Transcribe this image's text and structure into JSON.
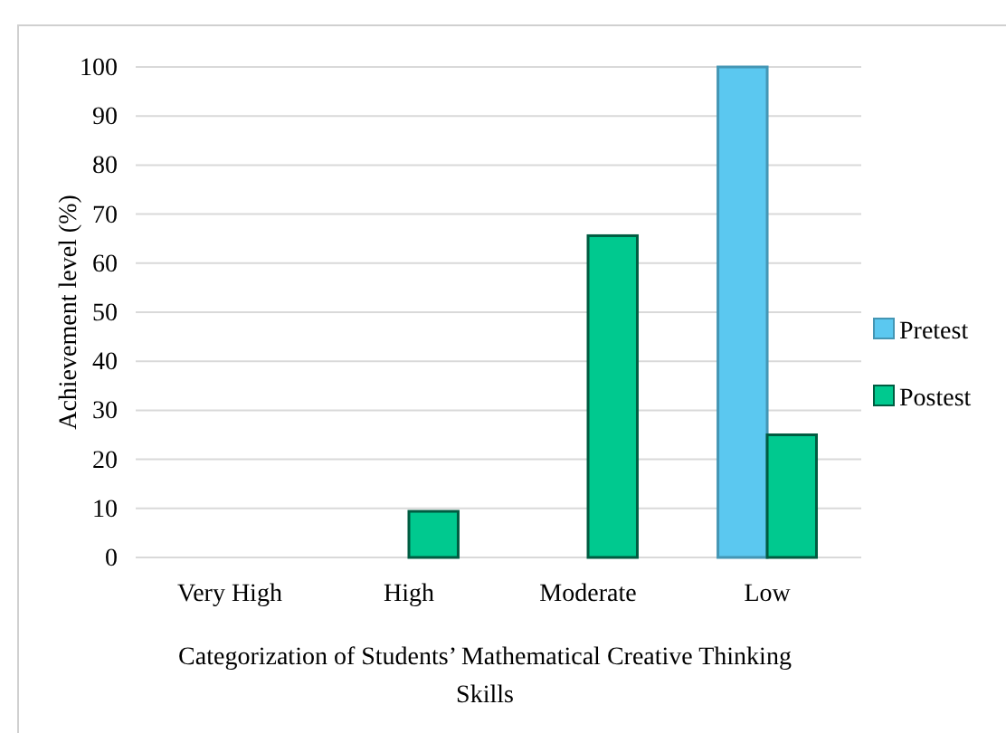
{
  "chart_data": {
    "type": "bar",
    "xlabel": "Categorization of Students’ Mathematical Creative Thinking Skills",
    "ylabel": "Achievement level (%)",
    "categories": [
      "Very High",
      "High",
      "Moderate",
      "Low"
    ],
    "series": [
      {
        "name": "Pretest",
        "color": "#5bc8f0",
        "values": [
          0,
          0,
          0,
          100
        ]
      },
      {
        "name": "Postest",
        "color": "#00c98f",
        "values": [
          0,
          9.4,
          65.6,
          25
        ]
      }
    ],
    "ylim": [
      0,
      100
    ],
    "yticks": [
      0,
      10,
      20,
      30,
      40,
      50,
      60,
      70,
      80,
      90,
      100
    ],
    "grid": "y",
    "legend": "right"
  }
}
